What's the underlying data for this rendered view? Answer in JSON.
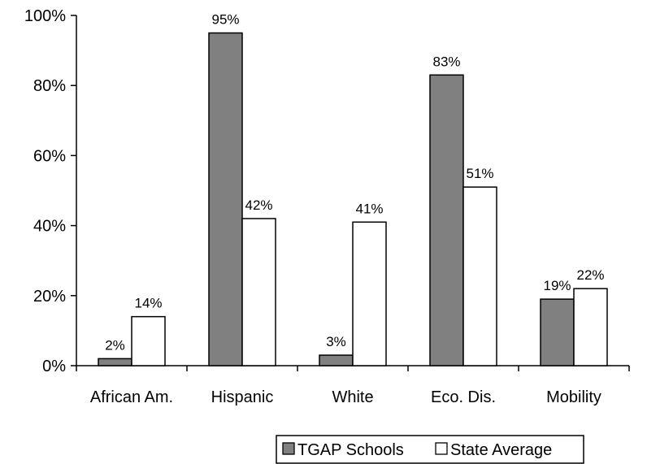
{
  "chart_data": {
    "type": "bar",
    "categories": [
      "African Am.",
      "Hispanic",
      "White",
      "Eco. Dis.",
      "Mobility"
    ],
    "series": [
      {
        "name": "TGAP Schools",
        "values": [
          2,
          95,
          3,
          83,
          19
        ],
        "labels": [
          "2%",
          "95%",
          "3%",
          "83%",
          "19%"
        ],
        "color": "#808080"
      },
      {
        "name": "State Average",
        "values": [
          14,
          42,
          41,
          51,
          22
        ],
        "labels": [
          "14%",
          "42%",
          "41%",
          "51%",
          "22%"
        ],
        "color": "#ffffff"
      }
    ],
    "ylim": [
      0,
      100
    ],
    "yticks": [
      "0%",
      "20%",
      "40%",
      "60%",
      "80%",
      "100%"
    ],
    "grid": false,
    "legend_position": "bottom-right"
  }
}
